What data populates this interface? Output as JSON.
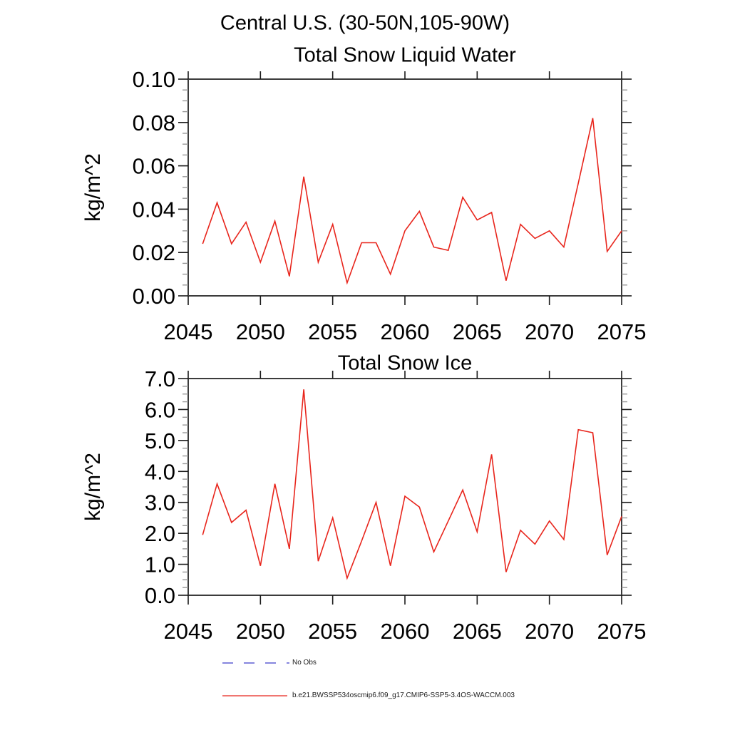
{
  "title": "Central U.S. (30-50N,105-90W)",
  "legend": {
    "entries": [
      {
        "label": "No Obs",
        "style": "dashed",
        "color": "#5f5fd4"
      },
      {
        "label": "b.e21.BWSSP534oscmip6.f09_g17.CMIP6-SSP5-3.4OS-WACCM.003",
        "style": "solid",
        "color": "#e8251c"
      }
    ]
  },
  "colors": {
    "series_red": "#e8251c",
    "no_obs_blue": "#5f5fd4",
    "frame": "#3c3c3c",
    "major_tick": "#1a1a1a",
    "minor_tick": "#999999"
  },
  "chart_data": [
    {
      "type": "line",
      "title": "Total Snow Liquid Water",
      "xlabel": "",
      "ylabel": "kg/m^2",
      "xlim": [
        2045,
        2075
      ],
      "ylim": [
        0.0,
        0.1
      ],
      "grid": false,
      "legend_position": "none",
      "xticks": [
        2045,
        2050,
        2055,
        2060,
        2065,
        2070,
        2075
      ],
      "xtick_labels": [
        "2045",
        "2050",
        "2055",
        "2060",
        "2065",
        "2070",
        "2075"
      ],
      "ytick_values": [
        0.0,
        0.02,
        0.04,
        0.06,
        0.08,
        0.1
      ],
      "ytick_labels": [
        "0.00",
        "0.02",
        "0.04",
        "0.06",
        "0.08",
        "0.10"
      ],
      "minor_y_step": 0.005,
      "series": [
        {
          "name": "b.e21.BWSSP534oscmip6.f09_g17.CMIP6-SSP5-3.4OS-WACCM.003",
          "color": "#e8251c",
          "x": [
            2046,
            2047,
            2048,
            2049,
            2050,
            2051,
            2052,
            2053,
            2054,
            2055,
            2056,
            2057,
            2058,
            2059,
            2060,
            2061,
            2062,
            2063,
            2064,
            2065,
            2066,
            2067,
            2068,
            2069,
            2070,
            2071,
            2072,
            2073,
            2074,
            2075
          ],
          "values": [
            0.024,
            0.043,
            0.024,
            0.034,
            0.0155,
            0.0345,
            0.009,
            0.055,
            0.0155,
            0.033,
            0.006,
            0.0245,
            0.0245,
            0.01,
            0.03,
            0.039,
            0.0225,
            0.021,
            0.0455,
            0.035,
            0.0385,
            0.007,
            0.033,
            0.0265,
            0.03,
            0.0225,
            0.052,
            0.082,
            0.0205,
            0.03
          ]
        }
      ]
    },
    {
      "type": "line",
      "title": "Total Snow Ice",
      "xlabel": "",
      "ylabel": "kg/m^2",
      "xlim": [
        2045,
        2075
      ],
      "ylim": [
        0.0,
        7.0
      ],
      "grid": false,
      "legend_position": "none",
      "xticks": [
        2045,
        2050,
        2055,
        2060,
        2065,
        2070,
        2075
      ],
      "xtick_labels": [
        "2045",
        "2050",
        "2055",
        "2060",
        "2065",
        "2070",
        "2075"
      ],
      "ytick_values": [
        0.0,
        1.0,
        2.0,
        3.0,
        4.0,
        5.0,
        6.0,
        7.0
      ],
      "ytick_labels": [
        "0.0",
        "1.0",
        "2.0",
        "3.0",
        "4.0",
        "5.0",
        "6.0",
        "7.0"
      ],
      "minor_y_step": 0.25,
      "series": [
        {
          "name": "b.e21.BWSSP534oscmip6.f09_g17.CMIP6-SSP5-3.4OS-WACCM.003",
          "color": "#e8251c",
          "x": [
            2046,
            2047,
            2048,
            2049,
            2050,
            2051,
            2052,
            2053,
            2054,
            2055,
            2056,
            2057,
            2058,
            2059,
            2060,
            2061,
            2062,
            2063,
            2064,
            2065,
            2066,
            2067,
            2068,
            2069,
            2070,
            2071,
            2072,
            2073,
            2074,
            2075
          ],
          "values": [
            1.95,
            3.6,
            2.35,
            2.75,
            0.95,
            3.6,
            1.5,
            6.65,
            1.1,
            2.5,
            0.55,
            1.75,
            3.0,
            0.95,
            3.2,
            2.85,
            1.4,
            2.4,
            3.4,
            2.05,
            4.55,
            0.75,
            2.1,
            1.65,
            2.4,
            1.8,
            5.35,
            5.25,
            1.3,
            2.55
          ]
        }
      ]
    }
  ]
}
